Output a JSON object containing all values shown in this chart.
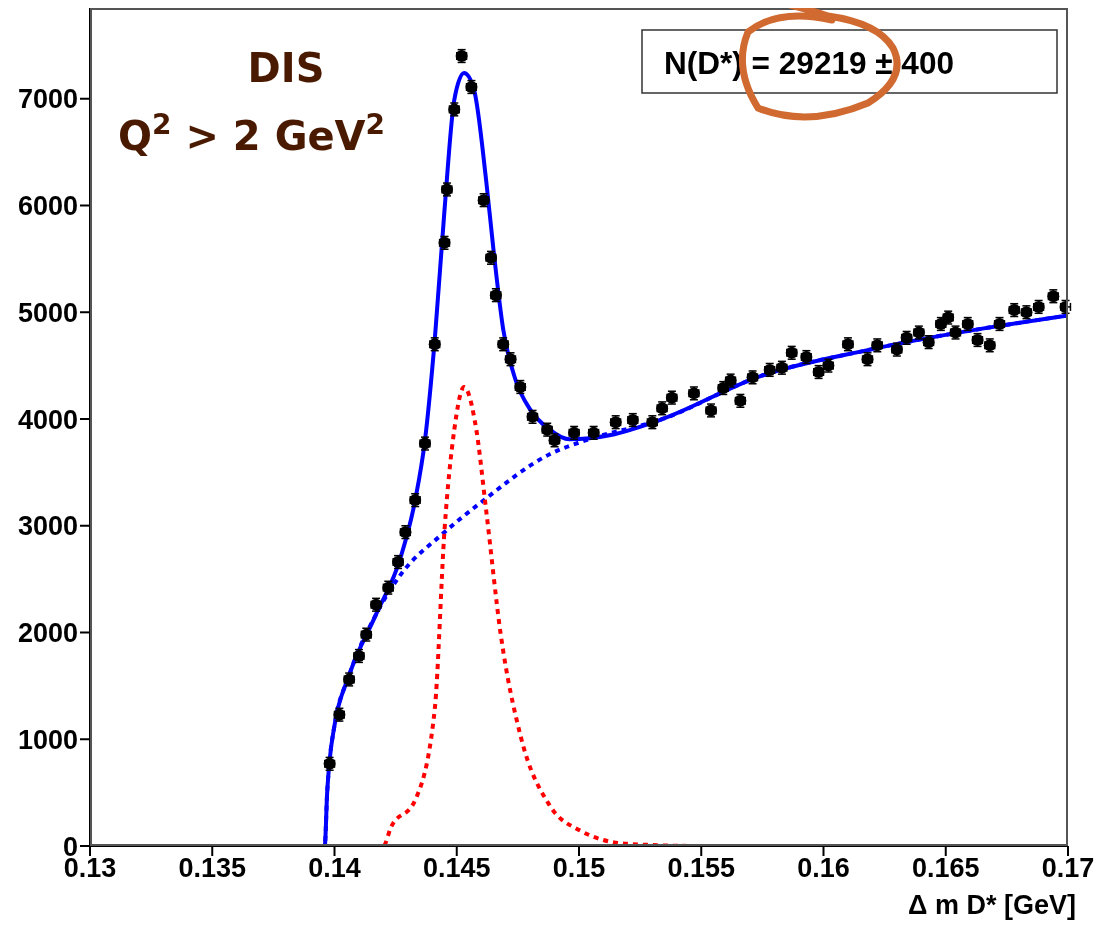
{
  "chart_data": {
    "type": "scatter",
    "xlabel": "Δ m D* [GeV]",
    "annotations": [
      "DIS",
      "Q$^{2}$ > 2 GeV$^{2}$",
      "N(D*) =  29219 ± 400"
    ],
    "xlim": [
      0.13,
      0.17
    ],
    "ylim": [
      0,
      7850
    ],
    "xticks": [
      0.13,
      0.135,
      0.14,
      0.145,
      0.15,
      0.155,
      0.16,
      0.165,
      0.17
    ],
    "yticks": [
      0,
      1000,
      2000,
      3000,
      4000,
      5000,
      6000,
      7000
    ],
    "grid": false,
    "series": [
      {
        "color": "#000000",
        "marker": "circle",
        "x": [
          0.1398,
          0.1402,
          0.1406,
          0.141,
          0.1413,
          0.1417,
          0.1422,
          0.1426,
          0.1429,
          0.1433,
          0.1437,
          0.1441,
          0.1445,
          0.1446,
          0.1449,
          0.1452,
          0.1456,
          0.1461,
          0.1464,
          0.1466,
          0.1469,
          0.1472,
          0.1476,
          0.1481,
          0.1487,
          0.149,
          0.1498,
          0.1506,
          0.1515,
          0.1522,
          0.153,
          0.1534,
          0.1538,
          0.1547,
          0.1554,
          0.1559,
          0.1562,
          0.1566,
          0.1571,
          0.1578,
          0.1583,
          0.1587,
          0.1593,
          0.1598,
          0.1602,
          0.161,
          0.1618,
          0.1622,
          0.163,
          0.1634,
          0.1639,
          0.1643,
          0.1648,
          0.1651,
          0.1654,
          0.1659,
          0.1663,
          0.1668,
          0.1672,
          0.1678,
          0.1683,
          0.1688,
          0.1694,
          0.1699
        ],
        "values": [
          770,
          1230,
          1560,
          1780,
          1980,
          2260,
          2420,
          2660,
          2940,
          3240,
          3770,
          4700,
          5650,
          6150,
          6900,
          7400,
          7110,
          6050,
          5510,
          5160,
          4700,
          4560,
          4300,
          4020,
          3900,
          3800,
          3870,
          3870,
          3970,
          3990,
          3970,
          4100,
          4200,
          4240,
          4080,
          4290,
          4360,
          4170,
          4390,
          4460,
          4480,
          4620,
          4580,
          4440,
          4500,
          4700,
          4560,
          4690,
          4650,
          4760,
          4810,
          4720,
          4890,
          4950,
          4810,
          4890,
          4740,
          4690,
          4890,
          5020,
          5000,
          5050,
          5150,
          5050
        ],
        "errors": [
          60,
          60,
          60,
          60,
          60,
          60,
          60,
          60,
          60,
          60,
          60,
          60,
          60,
          60,
          60,
          60,
          60,
          60,
          60,
          60,
          60,
          60,
          60,
          60,
          60,
          60,
          60,
          60,
          60,
          60,
          60,
          60,
          60,
          60,
          60,
          60,
          60,
          60,
          60,
          60,
          60,
          60,
          60,
          60,
          60,
          60,
          60,
          60,
          60,
          60,
          60,
          60,
          60,
          60,
          60,
          60,
          60,
          60,
          60,
          60,
          60,
          60,
          60,
          60
        ],
        "xerrors": [
          0.0002,
          0.0002,
          0.0002,
          0.0002,
          0.0002,
          0.0002,
          0.0002,
          0.0002,
          0.0002,
          0.0002,
          0.0002,
          0.0002,
          0.0002,
          0.0002,
          0.0002,
          0.0002,
          0.0002,
          0.0002,
          0.0002,
          0.0002,
          0.0002,
          0.0002,
          0.0002,
          0.0002,
          0.0002,
          0.0002,
          0.0002,
          0.0002,
          0.0002,
          0.0002,
          0.0002,
          0.0002,
          0.0002,
          0.0002,
          0.0002,
          0.0002,
          0.0002,
          0.0002,
          0.0002,
          0.0002,
          0.0002,
          0.0002,
          0.0002,
          0.0002,
          0.0002,
          0.0002,
          0.0002,
          0.0002,
          0.0002,
          0.0002,
          0.0002,
          0.0002,
          0.0002,
          0.0002,
          0.0002,
          0.0002,
          0.0002,
          0.0002,
          0.0002,
          0.0002,
          0.0002,
          0.0002,
          0.0002,
          0.0002
        ]
      },
      {
        "type": "line",
        "color": "#0000ff",
        "line_style": "solid",
        "x": [
          0.13,
          0.1396,
          0.1397,
          0.1398,
          0.14,
          0.1406,
          0.1417,
          0.1427,
          0.1433,
          0.1437,
          0.1441,
          0.1445,
          0.1449,
          0.1453,
          0.1457,
          0.1462,
          0.1465,
          0.1469,
          0.1474,
          0.148,
          0.1488,
          0.1496,
          0.1513,
          0.1533,
          0.1574,
          0.1619,
          0.17
        ],
        "values": [
          0,
          0,
          500,
          800,
          1130,
          1600,
          2170,
          2700,
          3240,
          3800,
          4740,
          5960,
          6990,
          7240,
          7090,
          6240,
          5590,
          4840,
          4370,
          4090,
          3900,
          3810,
          3850,
          3990,
          4400,
          4650,
          4970
        ]
      },
      {
        "type": "line",
        "color": "#0000ff",
        "line_style": "dotted",
        "x": [
          0.13,
          0.1396,
          0.1397,
          0.1398,
          0.14,
          0.1406,
          0.1417,
          0.1427,
          0.1444,
          0.146,
          0.1488,
          0.1504,
          0.1533,
          0.1574,
          0.1619,
          0.17
        ],
        "values": [
          0,
          0,
          500,
          800,
          1130,
          1600,
          2170,
          2540,
          2920,
          3220,
          3670,
          3810,
          3990,
          4400,
          4650,
          4970
        ]
      },
      {
        "type": "line",
        "color": "#ff0000",
        "line_style": "dotted",
        "x": [
          0.1396,
          0.142,
          0.1423,
          0.1433,
          0.1441,
          0.1445,
          0.1449,
          0.1453,
          0.1458,
          0.1462,
          0.1468,
          0.1476,
          0.1488,
          0.15,
          0.152,
          0.155,
          0.17
        ],
        "values": [
          0,
          0,
          170,
          430,
          1280,
          2960,
          3900,
          4300,
          3900,
          3150,
          1980,
          1040,
          380,
          150,
          20,
          0,
          0
        ]
      }
    ]
  }
}
